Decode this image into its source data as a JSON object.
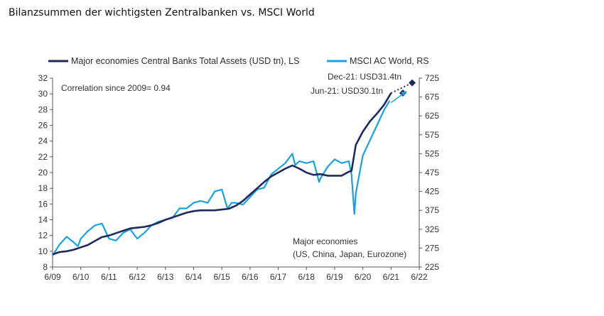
{
  "page": {
    "title": "Bilanzsummen der wichtigsten Zentralbanken vs. MSCI World"
  },
  "chart_data": {
    "type": "line",
    "title": "Bilanzsummen der wichtigsten Zentralbanken vs. MSCI World",
    "x_ticks": [
      "6/09",
      "6/10",
      "6/11",
      "6/12",
      "6/13",
      "6/14",
      "6/15",
      "6/16",
      "6/17",
      "6/18",
      "6/19",
      "6/20",
      "6/21",
      "6/22"
    ],
    "y_left": {
      "min": 8,
      "max": 32,
      "ticks": [
        8,
        10,
        12,
        14,
        16,
        18,
        20,
        22,
        24,
        26,
        28,
        30,
        32
      ]
    },
    "y_right": {
      "min": 225,
      "max": 725,
      "ticks": [
        225,
        275,
        325,
        375,
        425,
        475,
        525,
        575,
        625,
        675,
        725
      ]
    },
    "grid": false,
    "legend_placement": "top",
    "colors": {
      "central_banks": "#1f2a5c",
      "msci": "#1aa0de",
      "projection": "#1f2a5c"
    },
    "series": [
      {
        "name": "Major economies Central Banks Total Assets (USD tn), LS",
        "axis": "left",
        "x": [
          2009.5,
          2009.75,
          2010.0,
          2010.25,
          2010.5,
          2010.75,
          2011.0,
          2011.25,
          2011.5,
          2011.75,
          2012.0,
          2012.25,
          2012.5,
          2012.75,
          2013.0,
          2013.25,
          2013.5,
          2013.75,
          2014.0,
          2014.25,
          2014.5,
          2014.75,
          2015.0,
          2015.25,
          2015.5,
          2015.75,
          2016.0,
          2016.25,
          2016.5,
          2016.75,
          2017.0,
          2017.25,
          2017.5,
          2017.75,
          2018.0,
          2018.25,
          2018.5,
          2018.75,
          2019.0,
          2019.25,
          2019.5,
          2019.75,
          2020.0,
          2020.1,
          2020.25,
          2020.5,
          2020.75,
          2021.0,
          2021.25,
          2021.5
        ],
        "values": [
          9.6,
          9.9,
          10.0,
          10.2,
          10.5,
          10.8,
          11.3,
          11.8,
          12.0,
          12.3,
          12.6,
          12.9,
          13.0,
          13.1,
          13.3,
          13.6,
          14.0,
          14.3,
          14.6,
          14.9,
          15.1,
          15.2,
          15.2,
          15.2,
          15.3,
          15.4,
          15.8,
          16.4,
          17.2,
          18.0,
          18.8,
          19.5,
          20.0,
          20.5,
          20.9,
          20.5,
          20.0,
          19.7,
          19.8,
          19.6,
          19.6,
          19.6,
          20.1,
          20.2,
          23.5,
          25.2,
          26.5,
          27.5,
          28.6,
          30.1
        ]
      },
      {
        "name": "MSCI AC World, RS",
        "axis": "right",
        "x": [
          2009.5,
          2009.75,
          2010.0,
          2010.25,
          2010.4,
          2010.5,
          2010.75,
          2011.0,
          2011.25,
          2011.5,
          2011.75,
          2012.0,
          2012.25,
          2012.5,
          2012.75,
          2013.0,
          2013.25,
          2013.5,
          2013.75,
          2014.0,
          2014.25,
          2014.5,
          2014.75,
          2015.0,
          2015.25,
          2015.5,
          2015.7,
          2015.85,
          2016.0,
          2016.25,
          2016.5,
          2016.75,
          2017.0,
          2017.25,
          2017.5,
          2017.75,
          2018.0,
          2018.1,
          2018.25,
          2018.5,
          2018.75,
          2018.95,
          2019.0,
          2019.25,
          2019.5,
          2019.75,
          2020.0,
          2020.1,
          2020.2,
          2020.25,
          2020.5,
          2020.75,
          2021.0,
          2021.25,
          2021.45
        ],
        "values": [
          255,
          285,
          305,
          290,
          280,
          300,
          320,
          335,
          340,
          300,
          295,
          315,
          325,
          300,
          315,
          335,
          345,
          350,
          355,
          380,
          380,
          395,
          400,
          395,
          425,
          430,
          380,
          395,
          395,
          390,
          410,
          430,
          435,
          470,
          485,
          500,
          525,
          495,
          505,
          500,
          505,
          450,
          460,
          490,
          510,
          500,
          505,
          470,
          365,
          420,
          520,
          560,
          600,
          640,
          665
        ]
      },
      {
        "name": "Projection",
        "axis": "left",
        "style": "dotted",
        "x": [
          2021.5,
          2022.25
        ],
        "values": [
          30.1,
          31.4
        ]
      }
    ],
    "annotations": [
      {
        "text": "Correlation since 2009= 0.94"
      },
      {
        "text": "Dec-21: USD31.4tn",
        "x": 2021.92,
        "y": 31.4,
        "axis": "left"
      },
      {
        "text": "Jun-21: USD30.1tn",
        "x": 2021.5,
        "y": 30.1,
        "axis": "left"
      },
      {
        "text": "Major economies"
      },
      {
        "text": "(US, China, Japan, Eurozone)"
      }
    ],
    "legend": [
      {
        "label": "Major economies Central Banks Total Assets (USD tn), LS"
      },
      {
        "label": "MSCI AC World, RS"
      }
    ]
  }
}
